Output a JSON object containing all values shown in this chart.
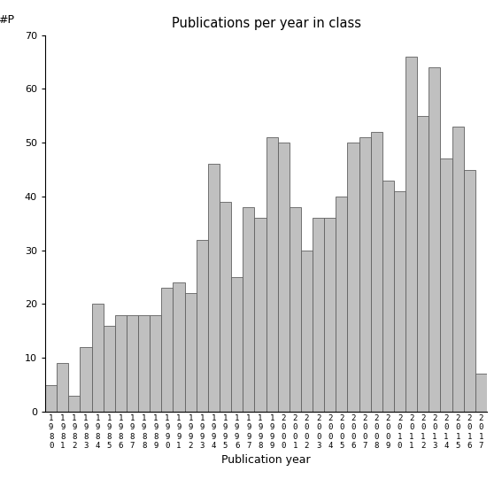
{
  "title": "Publications per year in class",
  "xlabel": "Publication year",
  "ylabel_annotation": "#P",
  "ylim": [
    0,
    70
  ],
  "yticks": [
    0,
    10,
    20,
    30,
    40,
    50,
    60,
    70
  ],
  "bar_color": "#c0c0c0",
  "bar_edgecolor": "#606060",
  "years": [
    "1980",
    "1981",
    "1982",
    "1983",
    "1984",
    "1985",
    "1986",
    "1987",
    "1988",
    "1989",
    "1990",
    "1991",
    "1992",
    "1993",
    "1994",
    "1995",
    "1996",
    "1997",
    "1998",
    "1999",
    "2000",
    "2001",
    "2002",
    "2003",
    "2004",
    "2005",
    "2006",
    "2007",
    "2008",
    "2009",
    "2010",
    "2011",
    "2012",
    "2013",
    "2014",
    "2015",
    "2016",
    "2017"
  ],
  "values": [
    5,
    9,
    3,
    12,
    20,
    16,
    18,
    18,
    18,
    18,
    23,
    24,
    22,
    32,
    46,
    39,
    25,
    38,
    36,
    51,
    50,
    38,
    30,
    36,
    36,
    40,
    50,
    51,
    52,
    43,
    41,
    66,
    55,
    64,
    47,
    53,
    45,
    7
  ]
}
